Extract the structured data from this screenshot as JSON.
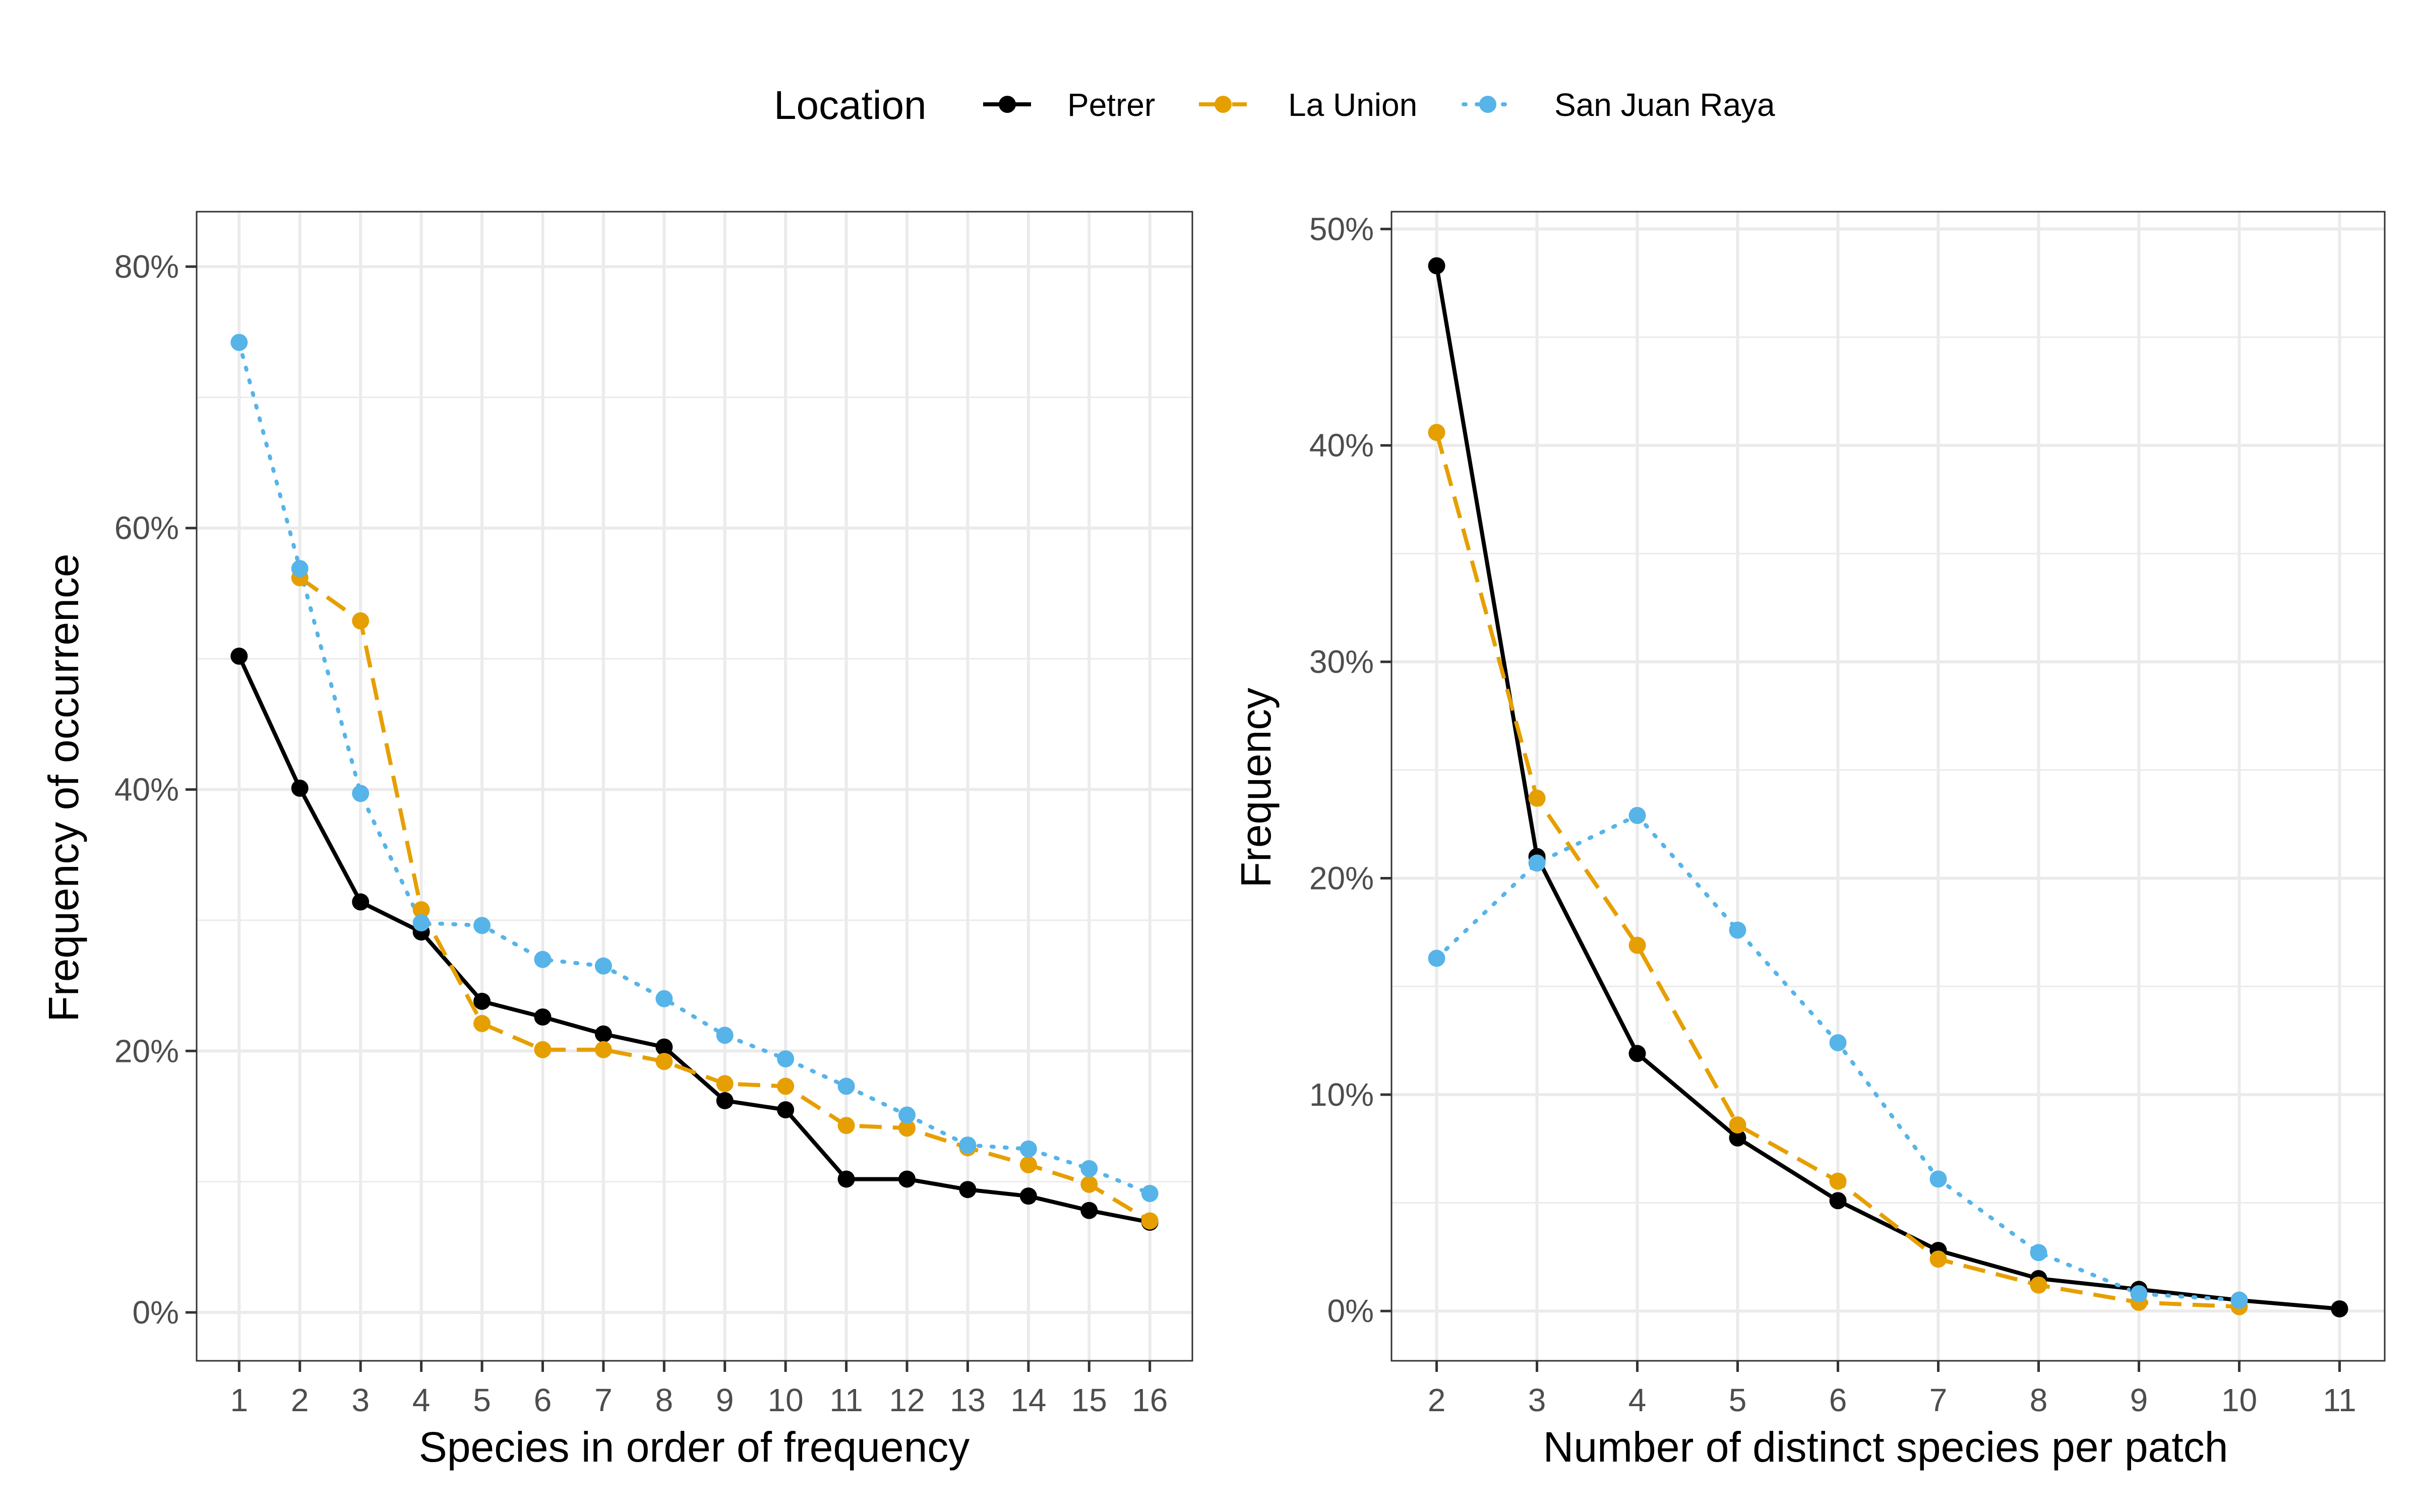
{
  "legend": {
    "title": "Location",
    "entries": [
      {
        "name": "Petrer",
        "color": "#000000",
        "linetype": "solid"
      },
      {
        "name": "La Union",
        "color": "#E69F00",
        "linetype": "dashed"
      },
      {
        "name": "San Juan Raya",
        "color": "#56B4E9",
        "linetype": "dotted"
      }
    ]
  },
  "chart_data": [
    {
      "type": "line",
      "xlabel": "Species in order of frequency",
      "ylabel": "Frequency of occurrence",
      "x": [
        1,
        2,
        3,
        4,
        5,
        6,
        7,
        8,
        9,
        10,
        11,
        12,
        13,
        14,
        15,
        16
      ],
      "xticks": [
        "1",
        "2",
        "3",
        "4",
        "5",
        "6",
        "7",
        "8",
        "9",
        "10",
        "11",
        "12",
        "13",
        "14",
        "15",
        "16"
      ],
      "yticks": [
        0,
        20,
        40,
        60,
        80
      ],
      "ytick_labels": [
        "0%",
        "20%",
        "40%",
        "60%",
        "80%"
      ],
      "xlim": [
        0.3,
        16.7
      ],
      "ylim": [
        -3.7,
        84.2
      ],
      "grid": true,
      "series": [
        {
          "name": "Petrer",
          "color": "#000000",
          "linetype": "solid",
          "x": [
            1,
            2,
            3,
            4,
            5,
            6,
            7,
            8,
            9,
            10,
            11,
            12,
            13,
            14,
            15,
            16
          ],
          "values": [
            50.2,
            40.1,
            31.4,
            29.1,
            23.8,
            22.6,
            21.3,
            20.3,
            16.2,
            15.5,
            10.2,
            10.2,
            9.4,
            8.9,
            7.8,
            6.9
          ]
        },
        {
          "name": "La Union",
          "color": "#E69F00",
          "linetype": "dashed",
          "x": [
            2,
            3,
            4,
            5,
            6,
            7,
            8,
            9,
            10,
            11,
            12,
            13,
            14,
            15,
            16
          ],
          "values": [
            56.2,
            52.9,
            30.8,
            22.1,
            20.1,
            20.1,
            19.2,
            17.5,
            17.3,
            14.3,
            14.1,
            12.6,
            11.3,
            9.8,
            7.0
          ]
        },
        {
          "name": "San Juan Raya",
          "color": "#56B4E9",
          "linetype": "dotted",
          "x": [
            1,
            2,
            3,
            4,
            5,
            6,
            7,
            8,
            9,
            10,
            11,
            12,
            13,
            14,
            15,
            16
          ],
          "values": [
            74.2,
            56.9,
            39.7,
            29.8,
            29.6,
            27.0,
            26.5,
            24.0,
            21.2,
            19.4,
            17.3,
            15.1,
            12.8,
            12.5,
            11.0,
            9.1
          ]
        }
      ]
    },
    {
      "type": "line",
      "xlabel": "Number of distinct species per patch",
      "ylabel": "Frequency",
      "x": [
        2,
        3,
        4,
        5,
        6,
        7,
        8,
        9,
        10,
        11
      ],
      "xticks": [
        "2",
        "3",
        "4",
        "5",
        "6",
        "7",
        "8",
        "9",
        "10",
        "11"
      ],
      "yticks": [
        0,
        10,
        20,
        30,
        40,
        50
      ],
      "ytick_labels": [
        "0%",
        "10%",
        "20%",
        "30%",
        "40%",
        "50%"
      ],
      "xlim": [
        1.55,
        11.45
      ],
      "ylim": [
        -2.3,
        50.8
      ],
      "grid": true,
      "series": [
        {
          "name": "Petrer",
          "color": "#000000",
          "linetype": "solid",
          "x": [
            2,
            3,
            4,
            5,
            6,
            7,
            8,
            9,
            10,
            11
          ],
          "values": [
            48.3,
            21.0,
            11.9,
            8.0,
            5.1,
            2.8,
            1.5,
            1.0,
            0.5,
            0.1
          ]
        },
        {
          "name": "La Union",
          "color": "#E69F00",
          "linetype": "dashed",
          "x": [
            2,
            3,
            4,
            5,
            6,
            7,
            8,
            9,
            10
          ],
          "values": [
            40.6,
            23.7,
            16.9,
            8.6,
            6.0,
            2.4,
            1.2,
            0.4,
            0.2
          ]
        },
        {
          "name": "San Juan Raya",
          "color": "#56B4E9",
          "linetype": "dotted",
          "x": [
            2,
            3,
            4,
            5,
            6,
            7,
            8,
            9,
            10
          ],
          "values": [
            16.3,
            20.7,
            22.9,
            17.6,
            12.4,
            6.1,
            2.7,
            0.8,
            0.5
          ]
        }
      ]
    }
  ]
}
